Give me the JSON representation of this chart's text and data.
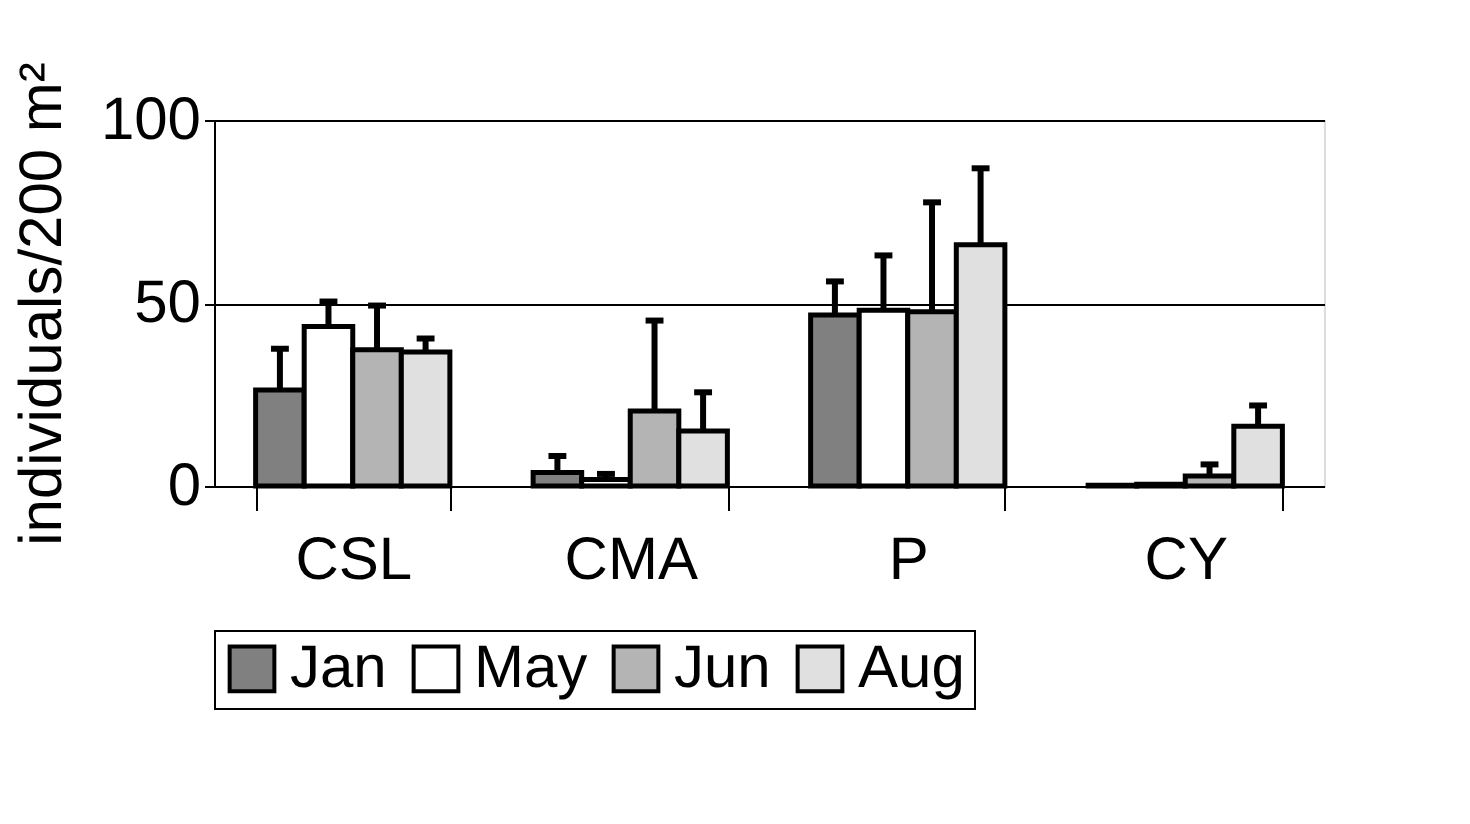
{
  "chart_data": {
    "type": "bar",
    "ylabel": "individuals/200 m²",
    "categories": [
      "CSL",
      "CMA",
      "P",
      "CY"
    ],
    "series": [
      {
        "name": "Jan",
        "color": "#808080",
        "values": [
          26.2,
          3.7,
          46.7,
          0.2
        ],
        "errors": [
          [
            26.2,
            37.5
          ],
          [
            3.7,
            8.2
          ],
          [
            46.7,
            55.9
          ],
          null
        ]
      },
      {
        "name": "May",
        "color": "#ffffff",
        "values": [
          43.6,
          1.8,
          48,
          0.5
        ],
        "errors": [
          [
            43.6,
            50.4
          ],
          [
            1.8,
            3.3
          ],
          [
            48,
            63
          ],
          null
        ]
      },
      {
        "name": "Jun",
        "color": "#b4b4b4",
        "values": [
          37.2,
          20.5,
          47.6,
          2.7
        ],
        "errors": [
          [
            37.2,
            49.3
          ],
          [
            20.5,
            45.2
          ],
          [
            47.6,
            77.5
          ],
          [
            2.7,
            5.9
          ]
        ]
      },
      {
        "name": "Aug",
        "color": "#e0e0e0",
        "values": [
          36.6,
          15,
          65.9,
          16.3
        ],
        "errors": [
          [
            36.6,
            40.3
          ],
          [
            15,
            25.6
          ],
          [
            65.9,
            86.8
          ],
          [
            16.3,
            22
          ]
        ]
      }
    ],
    "ylim": [
      0,
      100
    ],
    "yticks": [
      0,
      50,
      100
    ],
    "grid": "y",
    "legend": "bottom"
  }
}
